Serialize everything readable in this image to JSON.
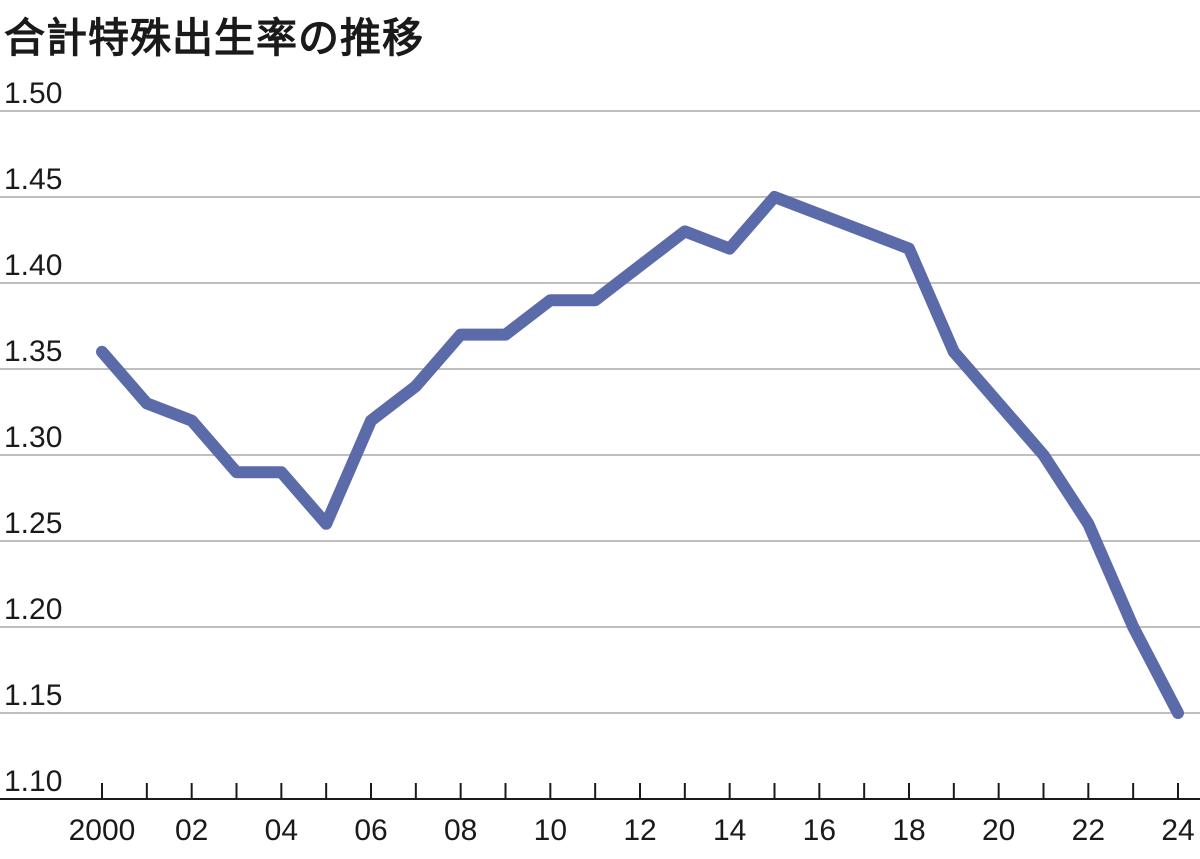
{
  "chart_data": {
    "type": "line",
    "title": "合計特殊出生率の推移",
    "xlabel": "",
    "ylabel": "",
    "x": [
      2000,
      2001,
      2002,
      2003,
      2004,
      2005,
      2006,
      2007,
      2008,
      2009,
      2010,
      2011,
      2012,
      2013,
      2014,
      2015,
      2016,
      2017,
      2018,
      2019,
      2020,
      2021,
      2022,
      2023,
      2024
    ],
    "series": [
      {
        "values": [
          1.36,
          1.33,
          1.32,
          1.29,
          1.29,
          1.26,
          1.32,
          1.34,
          1.37,
          1.37,
          1.39,
          1.39,
          1.41,
          1.43,
          1.42,
          1.45,
          1.44,
          1.43,
          1.42,
          1.36,
          1.33,
          1.3,
          1.26,
          1.2,
          1.15
        ],
        "color": "#5b6aa8"
      }
    ],
    "x_tick_labels": [
      {
        "x": 2000,
        "label": "2000"
      },
      {
        "x": 2002,
        "label": "02"
      },
      {
        "x": 2004,
        "label": "04"
      },
      {
        "x": 2006,
        "label": "06"
      },
      {
        "x": 2008,
        "label": "08"
      },
      {
        "x": 2010,
        "label": "10"
      },
      {
        "x": 2012,
        "label": "12"
      },
      {
        "x": 2014,
        "label": "14"
      },
      {
        "x": 2016,
        "label": "16"
      },
      {
        "x": 2018,
        "label": "18"
      },
      {
        "x": 2020,
        "label": "20"
      },
      {
        "x": 2022,
        "label": "22"
      },
      {
        "x": 2024,
        "label": "24"
      }
    ],
    "y_ticks": [
      "1.50",
      "1.45",
      "1.40",
      "1.35",
      "1.30",
      "1.25",
      "1.20",
      "1.15",
      "1.10"
    ],
    "xlim": [
      2000,
      2024
    ],
    "ylim": [
      1.1,
      1.5
    ],
    "grid": "horizontal",
    "legend": "none"
  }
}
